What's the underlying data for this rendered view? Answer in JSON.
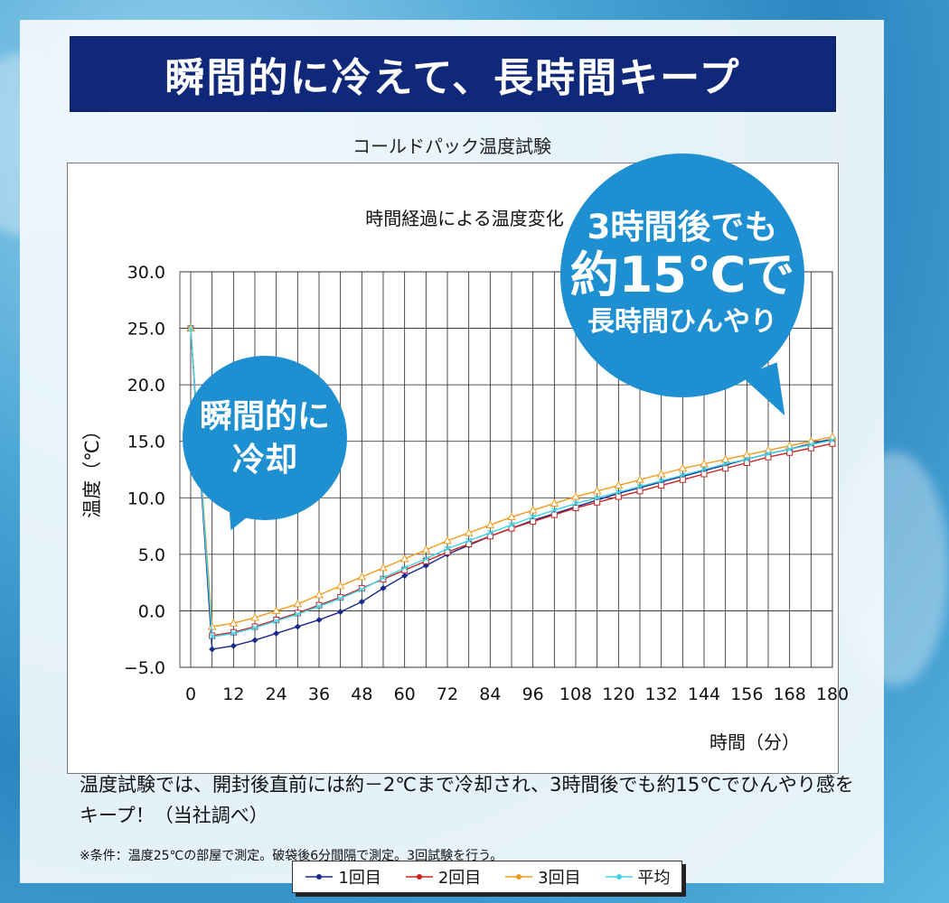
{
  "banner": {
    "title": "瞬間的に冷えて、長時間キープ"
  },
  "chart_title": "コールドパック温度試験",
  "bubbles": {
    "left": [
      "瞬間的に",
      "冷却"
    ],
    "right": [
      "3時間後でも",
      "約15℃で",
      "長時間ひんやり"
    ]
  },
  "description": {
    "text": "温度試験では、開封後直前には約－2℃まで冷却され、3時間後でも約15℃でひんやり感をキープ！（当社調べ）",
    "note": "※条件：温度25℃の部屋で測定。破袋後6分間隔で測定。3回試験を行う。"
  },
  "colors": {
    "banner": "#10287a",
    "bubble": "#1e8fd0"
  },
  "chart_data": {
    "type": "line",
    "title": "時間経過による温度変化",
    "xlabel": "時間（分）",
    "ylabel": "温度（℃）",
    "ylim": [
      -5,
      30
    ],
    "xlim": [
      0,
      180
    ],
    "y_ticks": [
      "30.0",
      "25.0",
      "20.0",
      "15.0",
      "10.0",
      "5.0",
      "0.0",
      "−5.0"
    ],
    "x_ticks": [
      "0",
      "12",
      "24",
      "36",
      "48",
      "60",
      "72",
      "84",
      "96",
      "108",
      "120",
      "132",
      "144",
      "156",
      "168",
      "180"
    ],
    "grid": true,
    "legend_position": "bottom",
    "x": [
      0,
      6,
      12,
      18,
      24,
      30,
      36,
      42,
      48,
      54,
      60,
      66,
      72,
      78,
      84,
      90,
      96,
      102,
      108,
      114,
      120,
      126,
      132,
      138,
      144,
      150,
      156,
      162,
      168,
      174,
      180
    ],
    "series": [
      {
        "name": "1回目",
        "color": "#1a2a8c",
        "marker": "diamond",
        "values": [
          25,
          -3.4,
          -3.1,
          -2.6,
          -2.0,
          -1.4,
          -0.8,
          -0.1,
          0.8,
          2.0,
          3.1,
          4.0,
          5.0,
          5.8,
          6.6,
          7.3,
          8.0,
          8.6,
          9.2,
          9.8,
          10.4,
          10.9,
          11.4,
          11.9,
          12.4,
          12.9,
          13.4,
          13.9,
          14.3,
          14.8,
          15.2
        ]
      },
      {
        "name": "2回目",
        "color": "#cc2222",
        "marker": "square",
        "values": [
          25,
          -2.2,
          -1.9,
          -1.4,
          -0.8,
          -0.2,
          0.5,
          1.2,
          2.0,
          2.8,
          3.6,
          4.4,
          5.2,
          5.9,
          6.6,
          7.3,
          7.9,
          8.5,
          9.1,
          9.6,
          10.1,
          10.6,
          11.1,
          11.6,
          12.1,
          12.6,
          13.1,
          13.6,
          14.0,
          14.4,
          14.8
        ]
      },
      {
        "name": "3回目",
        "color": "#f29a1a",
        "marker": "triangle",
        "values": [
          25,
          -1.4,
          -1.1,
          -0.6,
          0.0,
          0.6,
          1.4,
          2.2,
          3.0,
          3.8,
          4.6,
          5.4,
          6.2,
          6.9,
          7.6,
          8.3,
          8.9,
          9.5,
          10.1,
          10.6,
          11.1,
          11.6,
          12.1,
          12.6,
          13.0,
          13.4,
          13.8,
          14.2,
          14.6,
          15.0,
          15.4
        ]
      },
      {
        "name": "平均",
        "color": "#3fd4e8",
        "marker": "x",
        "values": [
          25,
          -2.3,
          -2.0,
          -1.5,
          -0.9,
          -0.3,
          0.4,
          1.1,
          1.9,
          2.9,
          3.8,
          4.6,
          5.5,
          6.2,
          6.9,
          7.6,
          8.3,
          8.9,
          9.5,
          10.0,
          10.5,
          11.0,
          11.5,
          12.0,
          12.5,
          13.0,
          13.4,
          13.9,
          14.3,
          14.7,
          15.1
        ]
      }
    ]
  }
}
